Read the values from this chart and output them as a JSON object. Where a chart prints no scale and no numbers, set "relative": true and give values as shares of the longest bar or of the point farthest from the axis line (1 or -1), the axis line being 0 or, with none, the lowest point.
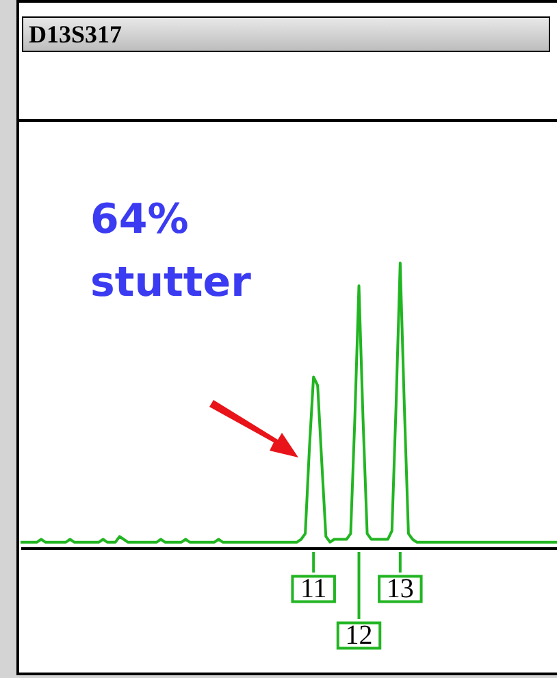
{
  "chart_data": {
    "type": "line",
    "title": "D13S317",
    "relative": true,
    "color": "#22b522",
    "categories": [
      null,
      null,
      null,
      null,
      null,
      null,
      null,
      null,
      null,
      null,
      null,
      null,
      null,
      null,
      null,
      null,
      null,
      null,
      null,
      null,
      null,
      null,
      null,
      null,
      null,
      null,
      null,
      null,
      null,
      null,
      null,
      null,
      null,
      null,
      null,
      null,
      null,
      null,
      null,
      null,
      null,
      null,
      null,
      null,
      null,
      null,
      null,
      null,
      null,
      null,
      null,
      null,
      null,
      null,
      null,
      null,
      null,
      null,
      null,
      null,
      null,
      null,
      null,
      null,
      null,
      null,
      null,
      null,
      null,
      null,
      null,
      null,
      null,
      null,
      null,
      null,
      null,
      null,
      null,
      null,
      null,
      null,
      null,
      null,
      null,
      null,
      null,
      null,
      null,
      null,
      null,
      null,
      null,
      null,
      null,
      null,
      null,
      null,
      null,
      null,
      null,
      null,
      null,
      null,
      null,
      null,
      null,
      null,
      null,
      null,
      null,
      null,
      null,
      null,
      null,
      null,
      null,
      null,
      null,
      null,
      null,
      null,
      null,
      null,
      null,
      null,
      null,
      null,
      null,
      null,
      null
    ],
    "values": [
      0.02,
      0.02,
      0.02,
      0.02,
      0.02,
      0.03,
      0.02,
      0.02,
      0.02,
      0.02,
      0.02,
      0.02,
      0.03,
      0.02,
      0.02,
      0.02,
      0.02,
      0.02,
      0.02,
      0.02,
      0.03,
      0.02,
      0.02,
      0.02,
      0.04,
      0.03,
      0.02,
      0.02,
      0.02,
      0.02,
      0.02,
      0.02,
      0.02,
      0.02,
      0.03,
      0.02,
      0.02,
      0.02,
      0.02,
      0.02,
      0.03,
      0.02,
      0.02,
      0.02,
      0.02,
      0.02,
      0.02,
      0.02,
      0.03,
      0.02,
      0.02,
      0.02,
      0.02,
      0.02,
      0.02,
      0.02,
      0.02,
      0.02,
      0.02,
      0.02,
      0.02,
      0.02,
      0.02,
      0.02,
      0.02,
      0.02,
      0.02,
      0.02,
      0.03,
      0.05,
      0.35,
      0.6,
      0.57,
      0.3,
      0.04,
      0.02,
      0.03,
      0.03,
      0.03,
      0.03,
      0.05,
      0.45,
      0.92,
      0.45,
      0.05,
      0.03,
      0.03,
      0.03,
      0.03,
      0.03,
      0.06,
      0.5,
      1.0,
      0.5,
      0.05,
      0.03,
      0.02,
      0.02,
      0.02,
      0.02,
      0.02,
      0.02,
      0.02,
      0.02,
      0.02,
      0.02,
      0.02,
      0.02,
      0.02,
      0.02,
      0.02,
      0.02,
      0.02,
      0.02,
      0.02,
      0.02,
      0.02,
      0.02,
      0.02,
      0.02,
      0.02,
      0.02,
      0.02,
      0.02,
      0.02,
      0.02,
      0.02,
      0.02,
      0.02,
      0.02,
      0.02
    ],
    "annotations": [
      "64% stutter",
      "11",
      "12",
      "13"
    ]
  }
}
